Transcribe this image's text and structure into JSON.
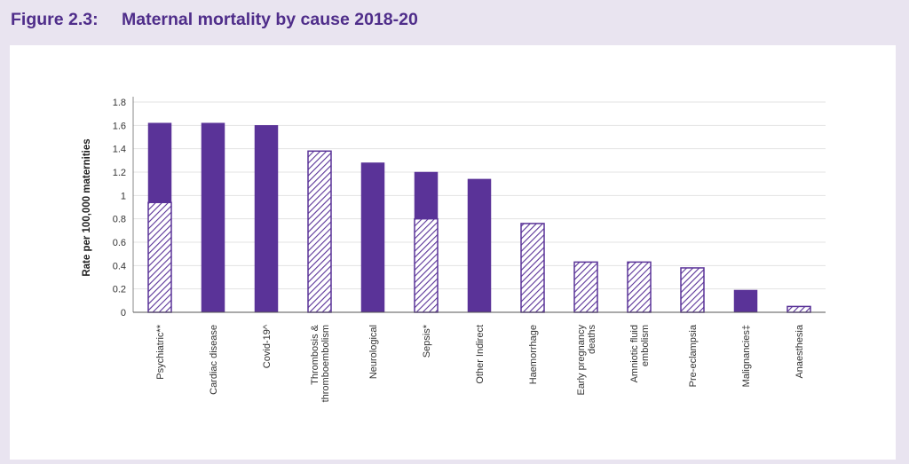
{
  "figure": {
    "number": "Figure 2.3:",
    "title": "Maternal mortality by cause 2018-20"
  },
  "colors": {
    "accent": "#5a3398",
    "title": "#4f2d8a",
    "background": "#e9e4f0",
    "grid": "#e3e3e3"
  },
  "chart_data": {
    "type": "bar",
    "stacked": true,
    "title": "Maternal mortality by cause 2018-20",
    "xlabel": "",
    "ylabel": "Rate per 100,000 maternities",
    "ylim": [
      0,
      1.8
    ],
    "yticks": [
      "0",
      "0.2",
      "0.4",
      "0.6",
      "0.8",
      "1",
      "1.2",
      "1.4",
      "1.6",
      "1.8"
    ],
    "grid": true,
    "categories": [
      [
        "Psychiatric**"
      ],
      [
        "Cardiac disease"
      ],
      [
        "Covid-19^"
      ],
      [
        "Thrombosis &",
        "thromboembolism"
      ],
      [
        "Neurological"
      ],
      [
        "Sepsis*"
      ],
      [
        "Other Indirect"
      ],
      [
        "Haemorrhage"
      ],
      [
        "Early pregnancy",
        "deaths"
      ],
      [
        "Amniotic fluid",
        "embolism"
      ],
      [
        "Pre-eclampsia"
      ],
      [
        "Malignancies‡"
      ],
      [
        "Anaesthesia"
      ]
    ],
    "series": [
      {
        "name": "hatched",
        "style": "hatched",
        "values": [
          0.94,
          0,
          0,
          1.38,
          0,
          0.8,
          0,
          0.76,
          0.43,
          0.43,
          0.38,
          0,
          0.05
        ]
      },
      {
        "name": "solid",
        "style": "solid",
        "values": [
          0.68,
          1.62,
          1.6,
          0,
          1.28,
          0.4,
          1.14,
          0,
          0,
          0,
          0,
          0.19,
          0
        ]
      }
    ]
  }
}
